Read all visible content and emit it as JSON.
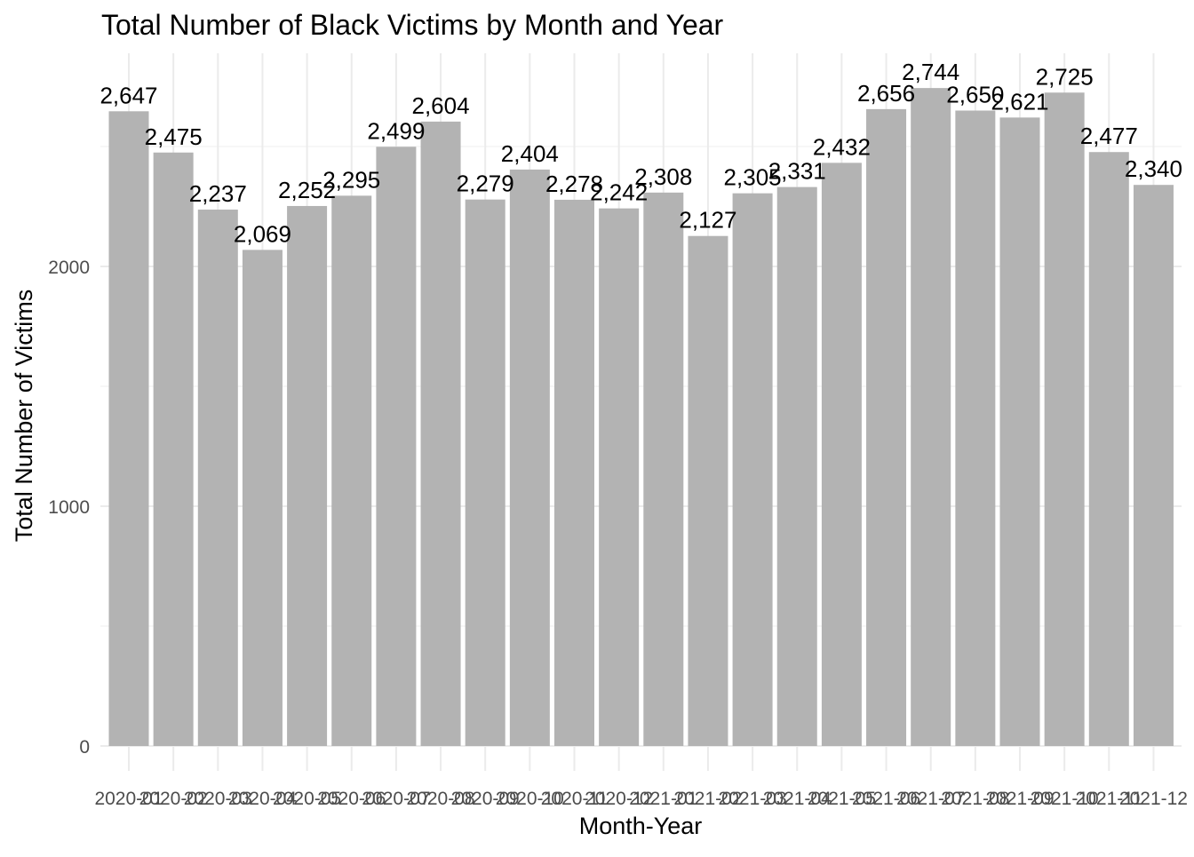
{
  "chart_data": {
    "type": "bar",
    "title": "Total Number of Black Victims by Month and Year",
    "xlabel": "Month-Year",
    "ylabel": "Total Number of Victims",
    "categories": [
      "2020-01",
      "2020-02",
      "2020-03",
      "2020-04",
      "2020-05",
      "2020-06",
      "2020-07",
      "2020-08",
      "2020-09",
      "2020-10",
      "2020-11",
      "2020-12",
      "2021-01",
      "2021-02",
      "2021-03",
      "2021-04",
      "2021-05",
      "2021-06",
      "2021-07",
      "2021-08",
      "2021-09",
      "2021-10",
      "2021-11",
      "2021-12"
    ],
    "values": [
      2647,
      2475,
      2237,
      2069,
      2252,
      2295,
      2499,
      2604,
      2279,
      2404,
      2278,
      2242,
      2308,
      2127,
      2305,
      2331,
      2432,
      2656,
      2744,
      2650,
      2621,
      2725,
      2477,
      2340
    ],
    "data_labels": [
      "2,647",
      "2,475",
      "2,237",
      "2,069",
      "2,252",
      "2,295",
      "2,499",
      "2,604",
      "2,279",
      "2,404",
      "2,278",
      "2,242",
      "2,308",
      "2,127",
      "2,305",
      "2,331",
      "2,432",
      "2,656",
      "2,744",
      "2,650",
      "2,621",
      "2,725",
      "2,477",
      "2,340"
    ],
    "yticks": [
      0,
      1000,
      2000
    ],
    "ylim": [
      0,
      2881
    ],
    "grid": true,
    "legend": "none",
    "bar_color": "#b3b3b3",
    "grid_color": "#ebebeb"
  }
}
